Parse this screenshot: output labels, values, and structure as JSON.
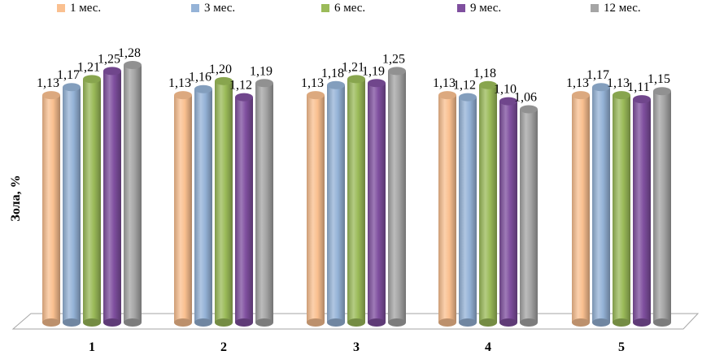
{
  "chart_data": {
    "type": "bar",
    "style": "3d-cylinder",
    "categories": [
      "1",
      "2",
      "3",
      "4",
      "5"
    ],
    "series": [
      {
        "name": "1 мес.",
        "color": "#fac090",
        "values": [
          1.13,
          1.13,
          1.13,
          1.13,
          1.13
        ],
        "labels": [
          "1,13",
          "1,13",
          "1,13",
          "1,13",
          "1,13"
        ]
      },
      {
        "name": "3 мес.",
        "color": "#95b3d7",
        "values": [
          1.17,
          1.16,
          1.18,
          1.12,
          1.17
        ],
        "labels": [
          "1,17",
          "1,16",
          "1,18",
          "1,12",
          "1,17"
        ]
      },
      {
        "name": "6 мес.",
        "color": "#9bbb59",
        "values": [
          1.21,
          1.2,
          1.21,
          1.18,
          1.13
        ],
        "labels": [
          "1,21",
          "1,20",
          "1,21",
          "1,18",
          "1,13"
        ]
      },
      {
        "name": "9 мес.",
        "color": "#7f4f9f",
        "values": [
          1.25,
          1.12,
          1.19,
          1.1,
          1.11
        ],
        "labels": [
          "1,25",
          "1,12",
          "1,19",
          "1,10",
          "1,11"
        ]
      },
      {
        "name": "12 мес.",
        "color": "#a5a5a5",
        "values": [
          1.28,
          1.19,
          1.25,
          1.06,
          1.15
        ],
        "labels": [
          "1,28",
          "1,19",
          "1,25",
          "1,06",
          "1,15"
        ]
      }
    ],
    "title": "",
    "xlabel": "",
    "ylabel": "Зола, %",
    "ylim": [
      0,
      1.28
    ],
    "legend": "top",
    "grid": false
  }
}
